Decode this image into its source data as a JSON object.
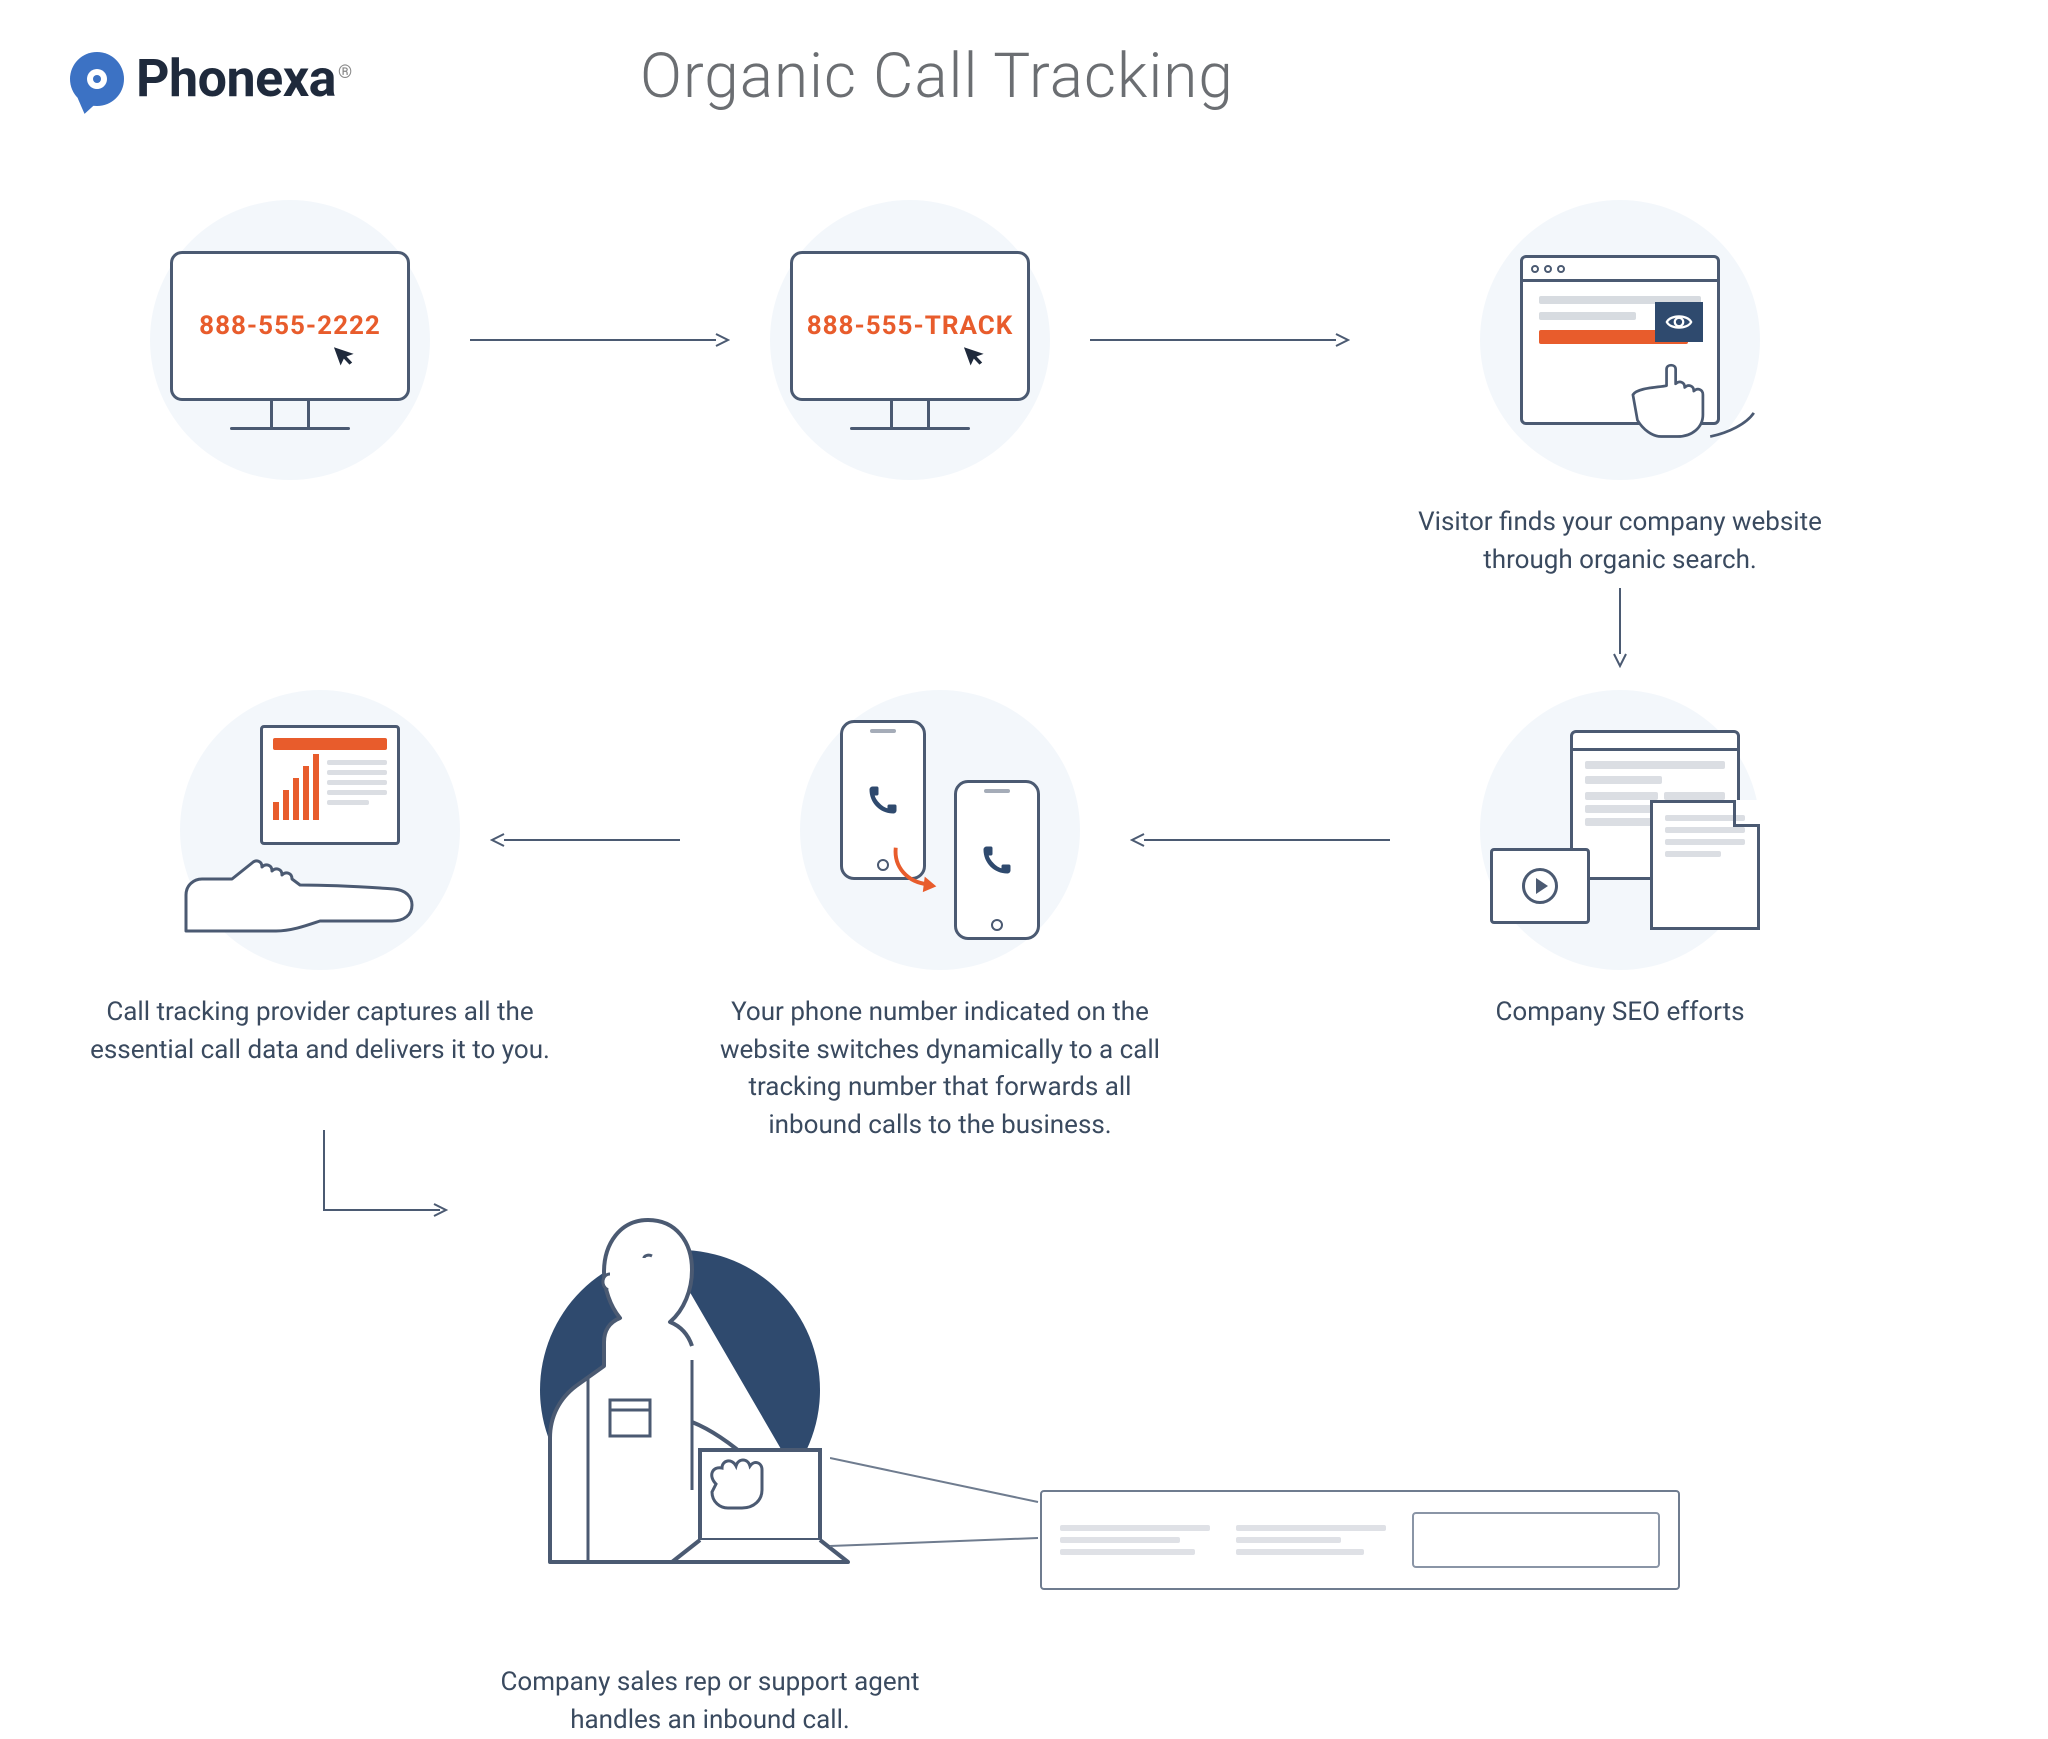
{
  "brand": {
    "name": "Phonexa",
    "trademark": "®"
  },
  "title": "Organic Call Tracking",
  "colors": {
    "accent": "#e85c2c",
    "stroke": "#4b5a72",
    "bg_tint": "#f3f7fb",
    "dark_fill": "#2f4a6e",
    "text_body": "#3a4a5f",
    "text_title": "#6b6e72",
    "logo_blue": "#3c72c4"
  },
  "steps": {
    "monitor_original": {
      "phone": "888-555-2222"
    },
    "monitor_tracking": {
      "phone": "888-555-TRACK"
    },
    "organic": {
      "caption": "Visitor finds your company website through organic search."
    },
    "seo": {
      "caption": "Company SEO efforts"
    },
    "switch": {
      "caption": "Your phone number indicated on the website switches dynamically to a call tracking number that forwards all inbound calls to the business."
    },
    "capture": {
      "caption": "Call tracking provider captures all the essential call data and delivers it to you."
    },
    "agent": {
      "caption": "Company sales rep or support agent handles an inbound call."
    }
  },
  "report_bars": [
    18,
    30,
    42,
    54,
    66
  ]
}
